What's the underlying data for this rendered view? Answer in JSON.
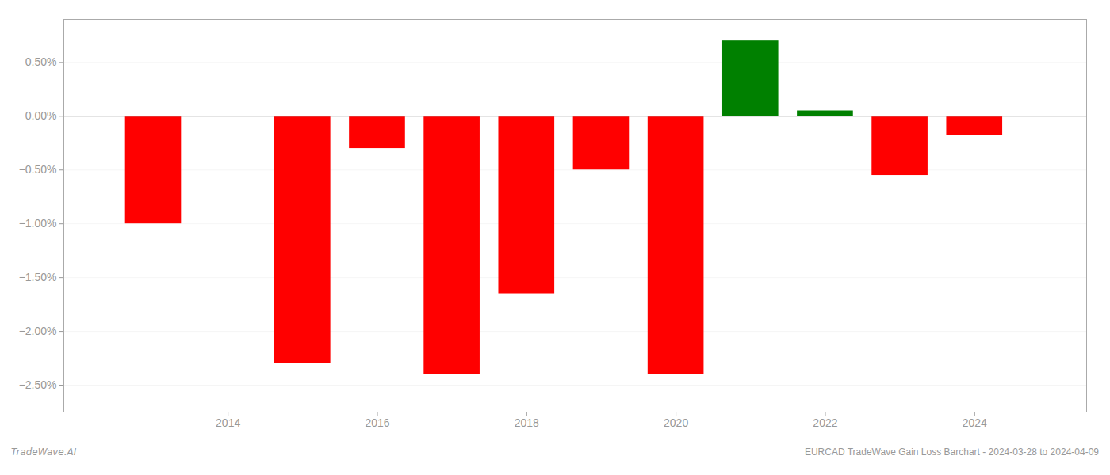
{
  "chart_data": {
    "type": "bar",
    "x": [
      2013,
      2015,
      2016,
      2017,
      2018,
      2019,
      2020,
      2021,
      2022,
      2023,
      2024
    ],
    "values": [
      -1.0,
      -2.3,
      -0.3,
      -2.4,
      -1.65,
      -0.5,
      -2.4,
      0.7,
      0.05,
      -0.55,
      -0.18
    ],
    "colors": [
      "#ff0000",
      "#ff0000",
      "#ff0000",
      "#ff0000",
      "#ff0000",
      "#ff0000",
      "#ff0000",
      "#008000",
      "#008000",
      "#ff0000",
      "#ff0000"
    ],
    "xlim": [
      2011.8,
      2025.5
    ],
    "xticks": [
      2014,
      2016,
      2018,
      2020,
      2022,
      2024
    ],
    "ylim": [
      -2.75,
      0.9
    ],
    "yticks": [
      {
        "value": 0.5,
        "label": "0.50%"
      },
      {
        "value": 0.0,
        "label": "0.00%"
      },
      {
        "value": -0.5,
        "label": "−0.50%"
      },
      {
        "value": -1.0,
        "label": "−1.00%"
      },
      {
        "value": -1.5,
        "label": "−1.50%"
      },
      {
        "value": -2.0,
        "label": "−2.00%"
      },
      {
        "value": -2.5,
        "label": "−2.50%"
      }
    ],
    "grid": true,
    "annotations": [
      "TradeWave.AI",
      "EURCAD TradeWave Gain Loss Barchart - 2024-03-28 to 2024-04-09"
    ]
  }
}
